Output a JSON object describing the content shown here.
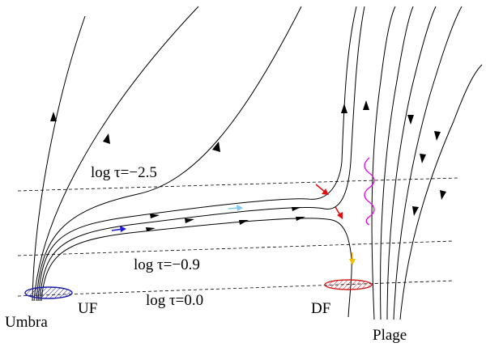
{
  "labels": {
    "log_tau_upper": "log τ=−2.5",
    "log_tau_middle": "log τ=−0.9",
    "log_tau_lower": "log τ=0.0",
    "umbra": "Umbra",
    "uf": "UF",
    "df": "DF",
    "plage": "Plage"
  },
  "colors": {
    "line": "#000000",
    "dashed": "#000000",
    "uf_ellipse": "#1a1aa8",
    "df_ellipse": "#d02020",
    "arrow_blue": "#1a1ad0",
    "arrow_lightblue": "#80c8f0",
    "arrow_red": "#e01010",
    "arrow_yellow": "#f0c000",
    "wave_magenta": "#e010e0"
  }
}
